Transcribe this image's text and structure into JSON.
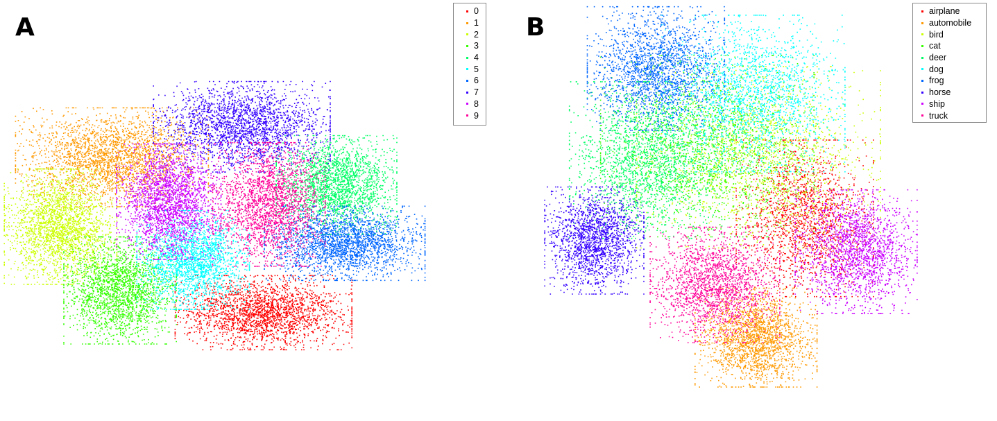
{
  "panels": {
    "a": {
      "letter": "A"
    },
    "b": {
      "letter": "B"
    }
  },
  "chart_data": [
    {
      "type": "scatter",
      "title": "",
      "xlabel": "",
      "ylabel": "",
      "grid": false,
      "axes_visible": false,
      "legend_position": "top-right",
      "legend": [
        "0",
        "1",
        "2",
        "3",
        "4",
        "5",
        "6",
        "7",
        "8",
        "9"
      ],
      "colors": [
        "#ff0000",
        "#ff9900",
        "#ccff00",
        "#33ff00",
        "#00ff66",
        "#00ffff",
        "#0066ff",
        "#3300ff",
        "#cc00ff",
        "#ff0099"
      ],
      "series": [
        {
          "name": "0",
          "center": [
            1.0,
            -3.5
          ],
          "spread": [
            2.2,
            0.9
          ],
          "points": 2300
        },
        {
          "name": "1",
          "center": [
            -4.6,
            2.1
          ],
          "spread": [
            2.4,
            1.2
          ],
          "points": 2500
        },
        {
          "name": "2",
          "center": [
            -6.5,
            -0.4
          ],
          "spread": [
            1.4,
            1.4
          ],
          "points": 2300
        },
        {
          "name": "3",
          "center": [
            -4.3,
            -2.7
          ],
          "spread": [
            1.4,
            1.3
          ],
          "points": 2200
        },
        {
          "name": "4",
          "center": [
            3.7,
            1.1
          ],
          "spread": [
            1.5,
            1.2
          ],
          "points": 2200
        },
        {
          "name": "5",
          "center": [
            -1.6,
            -1.6
          ],
          "spread": [
            1.4,
            1.2
          ],
          "points": 2100
        },
        {
          "name": "6",
          "center": [
            4.0,
            -1.0
          ],
          "spread": [
            2.0,
            0.9
          ],
          "points": 2300
        },
        {
          "name": "7",
          "center": [
            0.2,
            3.2
          ],
          "spread": [
            2.2,
            1.1
          ],
          "points": 2300
        },
        {
          "name": "8",
          "center": [
            -2.5,
            0.5
          ],
          "spread": [
            1.3,
            1.4
          ],
          "points": 2300
        },
        {
          "name": "9",
          "center": [
            1.2,
            0.4
          ],
          "spread": [
            1.4,
            1.5
          ],
          "points": 2200
        }
      ]
    },
    {
      "type": "scatter",
      "title": "",
      "xlabel": "",
      "ylabel": "",
      "grid": false,
      "axes_visible": false,
      "legend_position": "top-right",
      "legend": [
        "airplane",
        "automobile",
        "bird",
        "cat",
        "deer",
        "dog",
        "frog",
        "horse",
        "ship",
        "truck"
      ],
      "colors": [
        "#ff0000",
        "#ff9900",
        "#ccff00",
        "#33ff00",
        "#00ff66",
        "#00ffff",
        "#0066ff",
        "#3300ff",
        "#cc00ff",
        "#ff0099"
      ],
      "series": [
        {
          "name": "airplane",
          "center": [
            2.6,
            -0.6
          ],
          "spread": [
            1.8,
            1.9
          ],
          "points": 1700
        },
        {
          "name": "automobile",
          "center": [
            0.7,
            -4.9
          ],
          "spread": [
            1.6,
            1.2
          ],
          "points": 2000
        },
        {
          "name": "bird",
          "center": [
            0.8,
            1.6
          ],
          "spread": [
            3.2,
            2.2
          ],
          "points": 1700
        },
        {
          "name": "cat",
          "center": [
            -1.2,
            2.0
          ],
          "spread": [
            2.8,
            2.2
          ],
          "points": 1700
        },
        {
          "name": "deer",
          "center": [
            -3.6,
            1.5
          ],
          "spread": [
            2.0,
            1.9
          ],
          "points": 1900
        },
        {
          "name": "dog",
          "center": [
            0.6,
            3.9
          ],
          "spread": [
            2.4,
            1.9
          ],
          "points": 1900
        },
        {
          "name": "frog",
          "center": [
            -3.2,
            4.8
          ],
          "spread": [
            1.8,
            1.5
          ],
          "points": 2000
        },
        {
          "name": "horse",
          "center": [
            -5.6,
            -1.4
          ],
          "spread": [
            1.3,
            1.3
          ],
          "points": 1800
        },
        {
          "name": "ship",
          "center": [
            4.6,
            -1.8
          ],
          "spread": [
            1.6,
            1.5
          ],
          "points": 1900
        },
        {
          "name": "truck",
          "center": [
            -0.9,
            -3.0
          ],
          "spread": [
            1.7,
            1.4
          ],
          "points": 1900
        }
      ]
    }
  ]
}
